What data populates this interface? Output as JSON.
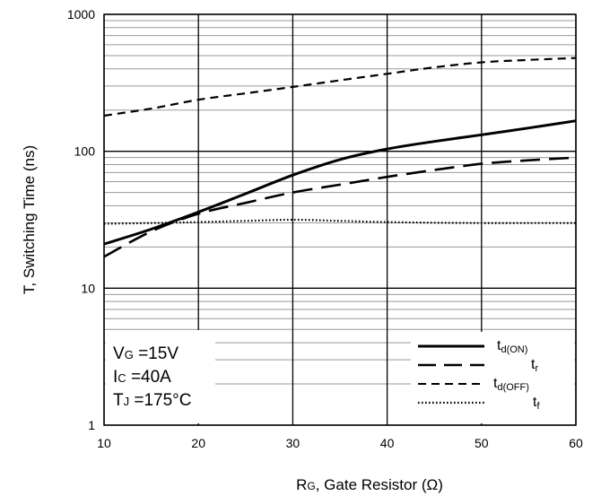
{
  "chart_data": {
    "type": "line",
    "xlabel": {
      "main": "R",
      "sub": "G",
      "rest": ", Gate Resistor (Ω)"
    },
    "ylabel": "T, Switching Time (ns)",
    "x_scale": "linear",
    "y_scale": "log",
    "xlim": [
      10,
      60
    ],
    "ylim": [
      1,
      1000
    ],
    "x_ticks": [
      "10",
      "20",
      "30",
      "40",
      "50",
      "60"
    ],
    "y_ticks": [
      "1",
      "10",
      "100",
      "1000"
    ],
    "grid": true,
    "conditions": [
      {
        "main": "V",
        "sub": "G",
        "rest": " =15V"
      },
      {
        "main": "I",
        "sub": "C",
        "rest": " =40A"
      },
      {
        "main": "T",
        "sub": "J",
        "rest": " =175°C"
      }
    ],
    "legend_position": "bottom-right",
    "series": [
      {
        "name": "t_d(ON)",
        "label_main": "t",
        "label_sub": "d(ON)",
        "style": "solid",
        "x": [
          10,
          15,
          20,
          25,
          30,
          35,
          40,
          45,
          50,
          55,
          60
        ],
        "y": [
          21,
          27,
          36,
          49,
          67,
          87,
          104,
          118,
          132,
          148,
          167
        ]
      },
      {
        "name": "t_r",
        "label_main": "t",
        "label_sub": "r",
        "style": "long-dash",
        "x": [
          10,
          15,
          20,
          25,
          30,
          35,
          40,
          45,
          50,
          55,
          60
        ],
        "y": [
          17,
          26,
          35,
          42,
          50,
          57,
          65,
          73,
          81,
          86,
          90
        ]
      },
      {
        "name": "t_d(OFF)",
        "label_main": "t",
        "label_sub": "d(OFF)",
        "style": "short-dash",
        "x": [
          10,
          15,
          20,
          25,
          30,
          35,
          40,
          45,
          50,
          55,
          60
        ],
        "y": [
          182,
          205,
          238,
          265,
          295,
          330,
          368,
          410,
          446,
          465,
          480
        ]
      },
      {
        "name": "t_f",
        "label_main": "t",
        "label_sub": "f",
        "style": "dotted",
        "x": [
          10,
          15,
          20,
          25,
          30,
          35,
          40,
          45,
          50,
          55,
          60
        ],
        "y": [
          29.6,
          29.9,
          30.4,
          31.0,
          31.6,
          31.0,
          30.4,
          30.1,
          29.9,
          29.9,
          29.9
        ]
      }
    ]
  }
}
